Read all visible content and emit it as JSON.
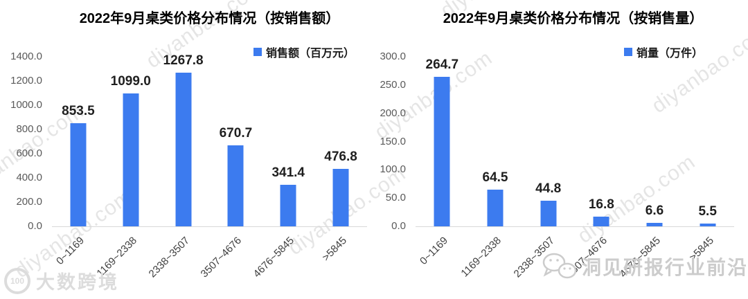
{
  "watermark": {
    "tile_text": "diyanbao.com",
    "footer_left": {
      "icon": "k100-logo",
      "icon_text": "100",
      "text": "大数跨境"
    },
    "footer_right": {
      "icon": "wechat-icon",
      "text": "洞见研报行业前沿"
    }
  },
  "colors": {
    "bar": "#3C7BEF",
    "axis_line": "#d9d9d9",
    "ytick_label": "#595959",
    "xtick_label": "#404040",
    "value_label": "#1f1f1f",
    "title": "#000000",
    "watermark_tile": "#e4e4e4",
    "watermark_footer": "#d4d4d4"
  },
  "chart_data": [
    {
      "type": "bar",
      "title": "2022年9月桌类价格分布情况（按销售额）",
      "legend": "销售额（百万元）",
      "legend_position": "top-right",
      "categories": [
        "0~1169",
        "1169~2338",
        "2338~3507",
        "3507~4676",
        "4676~5845",
        ">5845"
      ],
      "values": [
        853.5,
        1099.0,
        1267.8,
        670.7,
        341.4,
        476.8
      ],
      "value_labels": [
        "853.5",
        "1099.0",
        "1267.8",
        "670.7",
        "341.4",
        "476.8"
      ],
      "xlabel": "",
      "ylabel": "",
      "ylim": [
        0,
        1400
      ],
      "yticks": [
        "0.0",
        "200.0",
        "400.0",
        "600.0",
        "800.0",
        "1000.0",
        "1200.0",
        "1400.0"
      ],
      "grid": false,
      "xtick_rotation": 45
    },
    {
      "type": "bar",
      "title": "2022年9月桌类价格分布情况（按销售量）",
      "legend": "销量（万件）",
      "legend_position": "top-right",
      "categories": [
        "0~1169",
        "1169~2338",
        "2338~3507",
        "3507~4676",
        "4676~5845",
        ">5845"
      ],
      "values": [
        264.7,
        64.5,
        44.8,
        16.8,
        6.6,
        5.5
      ],
      "value_labels": [
        "264.7",
        "64.5",
        "44.8",
        "16.8",
        "6.6",
        "5.5"
      ],
      "xlabel": "",
      "ylabel": "",
      "ylim": [
        0,
        300
      ],
      "yticks": [
        "0.0",
        "50.0",
        "100.0",
        "150.0",
        "200.0",
        "250.0",
        "300.0"
      ],
      "grid": false,
      "xtick_rotation": 45
    }
  ]
}
